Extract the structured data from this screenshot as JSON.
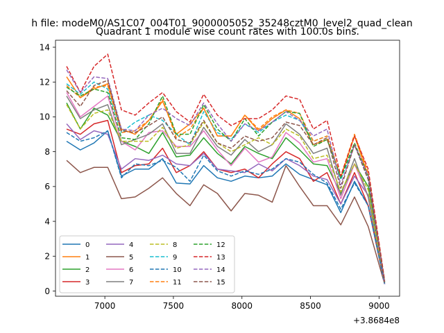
{
  "chart_data": {
    "type": "line",
    "suptitle": "h file: modeM0/AS1C07_004T01_9000005052_35248cztM0_level2_quad_clean",
    "title": "Quadrant 1 module wise count rates with 100.0s bins.",
    "xlabel": "",
    "ylabel": "",
    "offset_label": "+3.8684e8",
    "xlim": [
      6640,
      9150
    ],
    "ylim": [
      -0.3,
      14.4
    ],
    "x_ticks": [
      7000,
      7500,
      8000,
      8500,
      9000
    ],
    "y_ticks": [
      0,
      2,
      4,
      6,
      8,
      10,
      12,
      14
    ],
    "grid": false,
    "legend": {
      "placement": "lower-left",
      "columns": 4
    },
    "x": [
      6721,
      6821,
      6921,
      7021,
      7121,
      7221,
      7321,
      7421,
      7521,
      7621,
      7721,
      7821,
      7921,
      8021,
      8121,
      8221,
      8321,
      8421,
      8521,
      8621,
      8721,
      8821,
      8921,
      9041
    ],
    "series": [
      {
        "name": "0",
        "color": "#1f77b4",
        "dash": "solid",
        "values": [
          8.6,
          8.1,
          8.5,
          9.2,
          6.6,
          7.0,
          7.0,
          7.6,
          6.2,
          6.15,
          7.2,
          6.5,
          6.3,
          6.6,
          6.5,
          6.6,
          7.3,
          6.7,
          6.4,
          6.1,
          4.5,
          6.3,
          4.9,
          0.4
        ]
      },
      {
        "name": "1",
        "color": "#ff7f0e",
        "dash": "solid",
        "values": [
          12.3,
          11.1,
          11.6,
          11.9,
          9.3,
          9.0,
          9.8,
          10.9,
          9.0,
          9.6,
          10.5,
          8.9,
          8.9,
          10.1,
          9.2,
          9.9,
          10.4,
          9.9,
          8.4,
          8.7,
          6.5,
          8.9,
          6.6,
          0.5
        ]
      },
      {
        "name": "2",
        "color": "#2ca02c",
        "dash": "solid",
        "values": [
          10.8,
          9.3,
          10.5,
          10.1,
          8.6,
          8.3,
          7.9,
          9.1,
          7.7,
          7.8,
          8.8,
          7.9,
          7.3,
          8.3,
          7.9,
          7.6,
          8.8,
          8.1,
          7.3,
          7.2,
          5.6,
          7.3,
          6.0,
          0.5
        ]
      },
      {
        "name": "3",
        "color": "#d62728",
        "dash": "solid",
        "values": [
          9.3,
          9.0,
          9.6,
          9.8,
          6.8,
          7.2,
          7.3,
          8.2,
          6.8,
          7.2,
          8.0,
          7.0,
          6.8,
          7.0,
          6.5,
          7.3,
          8.0,
          7.6,
          6.3,
          6.8,
          5.0,
          6.8,
          4.9,
          0.4
        ]
      },
      {
        "name": "4",
        "color": "#9467bd",
        "dash": "solid",
        "values": [
          9.6,
          8.7,
          9.2,
          9.0,
          7.0,
          7.6,
          7.5,
          7.8,
          7.3,
          7.2,
          7.9,
          7.0,
          6.9,
          6.8,
          7.3,
          6.9,
          7.6,
          7.2,
          6.6,
          6.4,
          5.0,
          6.6,
          5.5,
          0.4
        ]
      },
      {
        "name": "5",
        "color": "#8c564b",
        "dash": "solid",
        "values": [
          7.5,
          6.8,
          7.1,
          7.1,
          5.3,
          5.4,
          5.9,
          6.5,
          5.6,
          4.9,
          6.1,
          5.6,
          4.6,
          5.6,
          5.5,
          5.1,
          7.2,
          6.0,
          4.9,
          4.9,
          3.8,
          5.4,
          3.7,
          0.4
        ]
      },
      {
        "name": "6",
        "color": "#e377c2",
        "dash": "solid",
        "values": [
          11.4,
          10.0,
          10.6,
          11.2,
          8.6,
          8.1,
          9.1,
          9.2,
          8.3,
          8.3,
          9.2,
          8.1,
          7.2,
          8.2,
          7.4,
          7.7,
          9.1,
          8.5,
          7.4,
          7.6,
          5.3,
          7.3,
          5.4,
          0.4
        ]
      },
      {
        "name": "7",
        "color": "#7f7f7f",
        "dash": "solid",
        "values": [
          11.2,
          9.9,
          10.4,
          10.7,
          8.4,
          8.7,
          9.0,
          9.6,
          7.9,
          7.9,
          9.4,
          8.3,
          7.8,
          8.7,
          8.0,
          8.4,
          9.6,
          9.0,
          7.9,
          8.2,
          5.5,
          7.6,
          5.4,
          0.4
        ]
      },
      {
        "name": "8",
        "color": "#bcbd22",
        "dash": "dashed",
        "values": [
          10.7,
          9.3,
          10.2,
          10.4,
          8.6,
          8.6,
          8.6,
          9.4,
          8.2,
          8.4,
          9.7,
          8.5,
          8.0,
          8.4,
          8.8,
          8.4,
          9.3,
          8.9,
          7.6,
          7.8,
          5.7,
          7.3,
          5.8,
          0.4
        ]
      },
      {
        "name": "9",
        "color": "#17becf",
        "dash": "dashed",
        "values": [
          11.9,
          11.3,
          12.0,
          11.6,
          9.1,
          9.7,
          10.1,
          9.8,
          9.0,
          8.4,
          10.3,
          9.1,
          8.7,
          9.6,
          9.1,
          9.7,
          10.1,
          9.8,
          8.6,
          8.9,
          6.4,
          8.4,
          6.4,
          0.5
        ]
      },
      {
        "name": "10",
        "color": "#1f77b4",
        "dash": "dashed",
        "values": [
          9.1,
          8.6,
          8.8,
          9.2,
          6.5,
          7.3,
          7.2,
          7.5,
          7.1,
          6.3,
          7.8,
          6.9,
          6.6,
          6.9,
          6.7,
          7.0,
          7.6,
          7.4,
          6.7,
          6.2,
          4.7,
          6.2,
          4.9,
          0.4
        ]
      },
      {
        "name": "11",
        "color": "#ff7f0e",
        "dash": "dashed",
        "values": [
          11.8,
          11.1,
          11.7,
          11.8,
          9.1,
          9.2,
          9.8,
          11.0,
          8.8,
          9.3,
          10.5,
          8.9,
          8.9,
          10.1,
          9.3,
          10.0,
          10.4,
          10.2,
          8.6,
          8.9,
          6.6,
          9.0,
          6.8,
          0.5
        ]
      },
      {
        "name": "12",
        "color": "#2ca02c",
        "dash": "dashed",
        "values": [
          11.7,
          11.2,
          11.6,
          11.4,
          8.8,
          8.7,
          9.6,
          11.2,
          9.0,
          9.0,
          10.7,
          9.3,
          8.6,
          9.9,
          8.9,
          9.7,
          10.3,
          10.2,
          8.3,
          8.7,
          6.5,
          8.5,
          6.6,
          0.5
        ]
      },
      {
        "name": "13",
        "color": "#d62728",
        "dash": "dashed",
        "values": [
          12.9,
          11.4,
          12.9,
          13.6,
          10.4,
          10.1,
          10.8,
          11.4,
          10.3,
          9.7,
          11.3,
          10.1,
          9.5,
          9.9,
          9.9,
          10.4,
          11.2,
          11.0,
          9.3,
          9.8,
          6.6,
          8.9,
          7.0,
          0.6
        ]
      },
      {
        "name": "14",
        "color": "#9467bd",
        "dash": "dashed",
        "values": [
          12.7,
          11.4,
          12.3,
          12.2,
          9.3,
          9.2,
          10.1,
          10.5,
          9.9,
          9.5,
          10.8,
          9.6,
          8.6,
          9.6,
          9.2,
          9.7,
          10.3,
          9.8,
          8.9,
          9.3,
          6.1,
          8.4,
          6.6,
          0.4
        ]
      },
      {
        "name": "15",
        "color": "#8c564b",
        "dash": "dashed",
        "values": [
          11.5,
          10.6,
          11.8,
          12.1,
          9.2,
          9.1,
          9.5,
          10.0,
          8.7,
          8.5,
          9.8,
          8.5,
          8.2,
          8.9,
          8.6,
          8.8,
          9.7,
          9.5,
          8.4,
          8.8,
          5.9,
          8.4,
          6.4,
          0.5
        ]
      }
    ]
  }
}
